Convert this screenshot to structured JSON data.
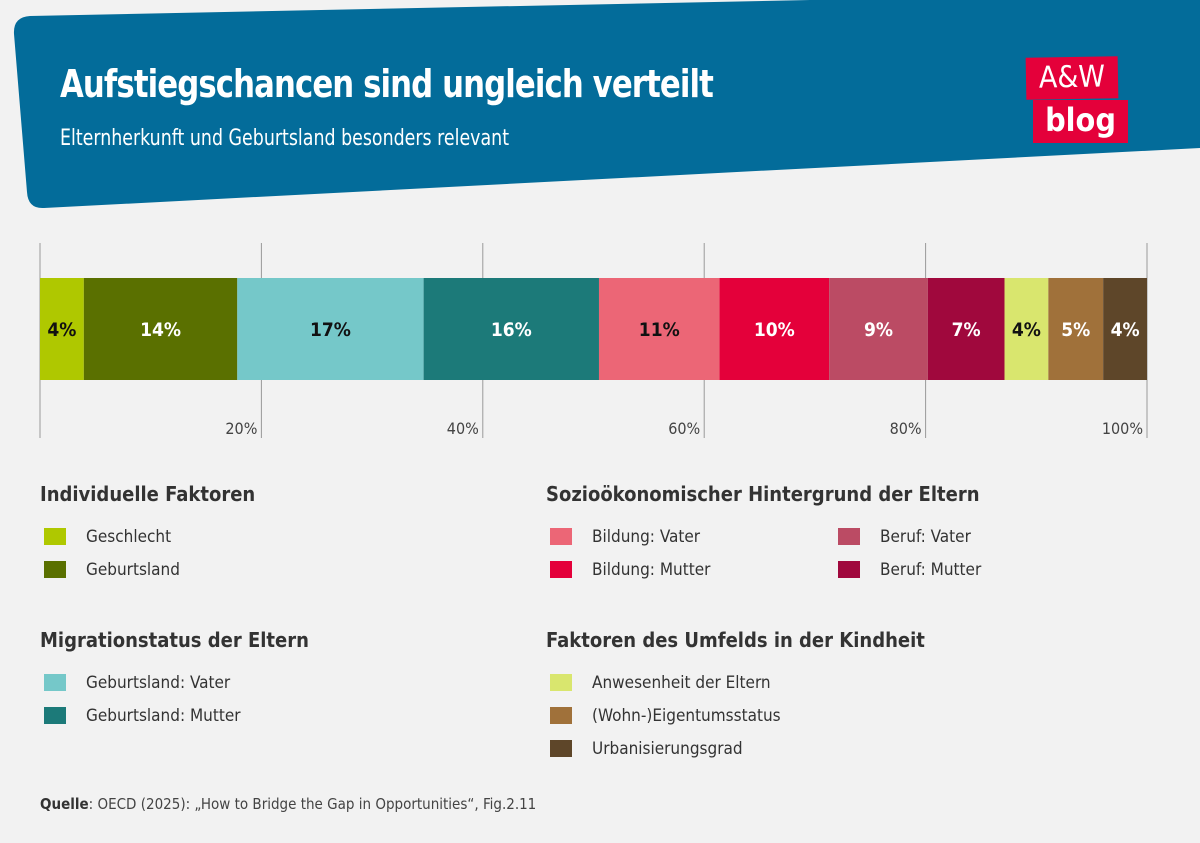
{
  "header": {
    "title": "Aufstiegschancen sind ungleich verteilt",
    "subtitle": "Elternherkunft und Geburtsland besonders relevant",
    "background_color": "#036c9a"
  },
  "logo": {
    "line1": "A&W",
    "line2": "blog",
    "color": "#e4003a"
  },
  "chart_data": {
    "type": "stacked-bar-horizontal",
    "xlim": [
      0,
      100
    ],
    "x_ticks": [
      "20%",
      "40%",
      "60%",
      "80%",
      "100%"
    ],
    "grid": true,
    "segments": [
      {
        "name": "Geschlecht",
        "value": 4,
        "label": "4%",
        "color": "#afc800",
        "text_color": "#111111"
      },
      {
        "name": "Geburtsland",
        "value": 14,
        "label": "14%",
        "color": "#5a7000",
        "text_color": "#ffffff"
      },
      {
        "name": "Geburtsland: Vater",
        "value": 17,
        "label": "17%",
        "color": "#75c8c9",
        "text_color": "#111111"
      },
      {
        "name": "Geburtsland: Mutter",
        "value": 16,
        "label": "16%",
        "color": "#1c7a79",
        "text_color": "#ffffff"
      },
      {
        "name": "Bildung: Vater",
        "value": 11,
        "label": "11%",
        "color": "#ec6676",
        "text_color": "#111111"
      },
      {
        "name": "Bildung: Mutter",
        "value": 10,
        "label": "10%",
        "color": "#e4003a",
        "text_color": "#ffffff"
      },
      {
        "name": "Beruf: Vater",
        "value": 9,
        "label": "9%",
        "color": "#bb4b64",
        "text_color": "#ffffff"
      },
      {
        "name": "Beruf: Mutter",
        "value": 7,
        "label": "7%",
        "color": "#a0083d",
        "text_color": "#ffffff"
      },
      {
        "name": "Anwesenheit der Eltern",
        "value": 4,
        "label": "4%",
        "color": "#d9e66e",
        "text_color": "#111111"
      },
      {
        "name": "(Wohn-)Eigentumsstatus",
        "value": 5,
        "label": "5%",
        "color": "#a0713a",
        "text_color": "#ffffff"
      },
      {
        "name": "Urbanisierungsgrad",
        "value": 4,
        "label": "4%",
        "color": "#5e4629",
        "text_color": "#ffffff"
      }
    ]
  },
  "legend": {
    "groups": [
      {
        "title": "Individuelle Faktoren",
        "items": [
          {
            "label": "Geschlecht",
            "color": "#afc800"
          },
          {
            "label": "Geburtsland",
            "color": "#5a7000"
          }
        ]
      },
      {
        "title": "Sozioökonomischer Hintergrund der Eltern",
        "items": [
          {
            "label": "Bildung: Vater",
            "color": "#ec6676"
          },
          {
            "label": "Bildung: Mutter",
            "color": "#e4003a"
          },
          {
            "label": "Beruf: Vater",
            "color": "#bb4b64"
          },
          {
            "label": "Beruf: Mutter",
            "color": "#a0083d"
          }
        ]
      },
      {
        "title": "Migrationstatus der Eltern",
        "items": [
          {
            "label": "Geburtsland: Vater",
            "color": "#75c8c9"
          },
          {
            "label": "Geburtsland: Mutter",
            "color": "#1c7a79"
          }
        ]
      },
      {
        "title": "Faktoren des Umfelds in der Kindheit",
        "items": [
          {
            "label": "Anwesenheit der Eltern",
            "color": "#d9e66e"
          },
          {
            "label": "(Wohn-)Eigentumsstatus",
            "color": "#a0713a"
          },
          {
            "label": "Urbanisierungsgrad",
            "color": "#5e4629"
          }
        ]
      }
    ]
  },
  "source": {
    "label": "Quelle",
    "text": ": OECD (2025): „How to Bridge the Gap in Opportunities“, Fig.2.11"
  }
}
